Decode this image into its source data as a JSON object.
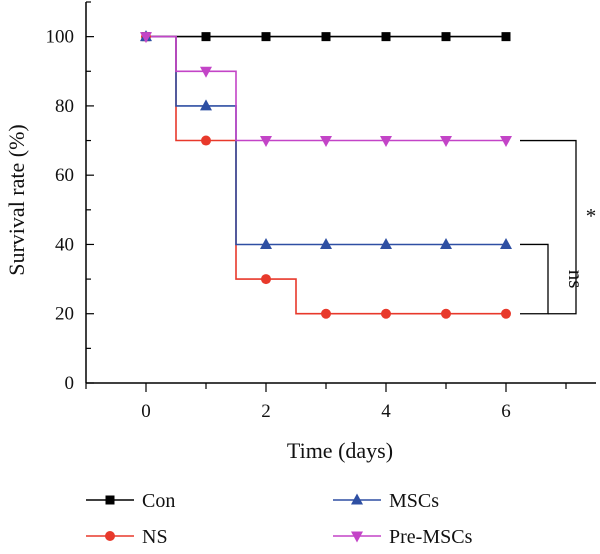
{
  "chart_data": {
    "type": "line",
    "step": "post",
    "xlabel": "Time (days)",
    "ylabel": "Survival rate (%)",
    "xlim": [
      -1,
      7.5
    ],
    "ylim": [
      0,
      110
    ],
    "xticks": [
      0,
      2,
      4,
      6
    ],
    "yticks": [
      0,
      20,
      40,
      60,
      80,
      100
    ],
    "grid": false,
    "legend_position": "bottom",
    "series": [
      {
        "name": "Con",
        "color": "#000000",
        "marker": "square",
        "x": [
          0,
          1,
          2,
          3,
          4,
          5,
          6
        ],
        "y": [
          100,
          100,
          100,
          100,
          100,
          100,
          100
        ],
        "steps": [
          [
            0,
            100
          ],
          [
            6,
            100
          ]
        ]
      },
      {
        "name": "NS",
        "color": "#e8392b",
        "marker": "circle",
        "x": [
          0,
          1,
          2,
          3,
          4,
          5,
          6
        ],
        "y": [
          100,
          70,
          30,
          20,
          20,
          20,
          20
        ],
        "steps": [
          [
            0,
            100
          ],
          [
            0.5,
            100
          ],
          [
            0.5,
            70
          ],
          [
            1.5,
            70
          ],
          [
            1.5,
            30
          ],
          [
            2.5,
            30
          ],
          [
            2.5,
            20
          ],
          [
            6,
            20
          ]
        ]
      },
      {
        "name": "MSCs",
        "color": "#2e4fa3",
        "marker": "triangle-up",
        "x": [
          0,
          1,
          2,
          3,
          4,
          5,
          6
        ],
        "y": [
          100,
          80,
          40,
          40,
          40,
          40,
          40
        ],
        "steps": [
          [
            0,
            100
          ],
          [
            0.5,
            100
          ],
          [
            0.5,
            80
          ],
          [
            1.5,
            80
          ],
          [
            1.5,
            40
          ],
          [
            6,
            40
          ]
        ]
      },
      {
        "name": "Pre-MSCs",
        "color": "#c344c7",
        "marker": "triangle-down",
        "x": [
          0,
          1,
          2,
          3,
          4,
          5,
          6
        ],
        "y": [
          100,
          90,
          70,
          70,
          70,
          70,
          70
        ],
        "steps": [
          [
            0,
            100
          ],
          [
            0.5,
            100
          ],
          [
            0.5,
            90
          ],
          [
            1.5,
            90
          ],
          [
            1.5,
            70
          ],
          [
            6,
            70
          ]
        ]
      }
    ],
    "annotations": [
      {
        "text": "ns",
        "between": [
          "MSCs",
          "NS"
        ]
      },
      {
        "text": "*",
        "between": [
          "Pre-MSCs",
          "NS"
        ]
      }
    ]
  }
}
